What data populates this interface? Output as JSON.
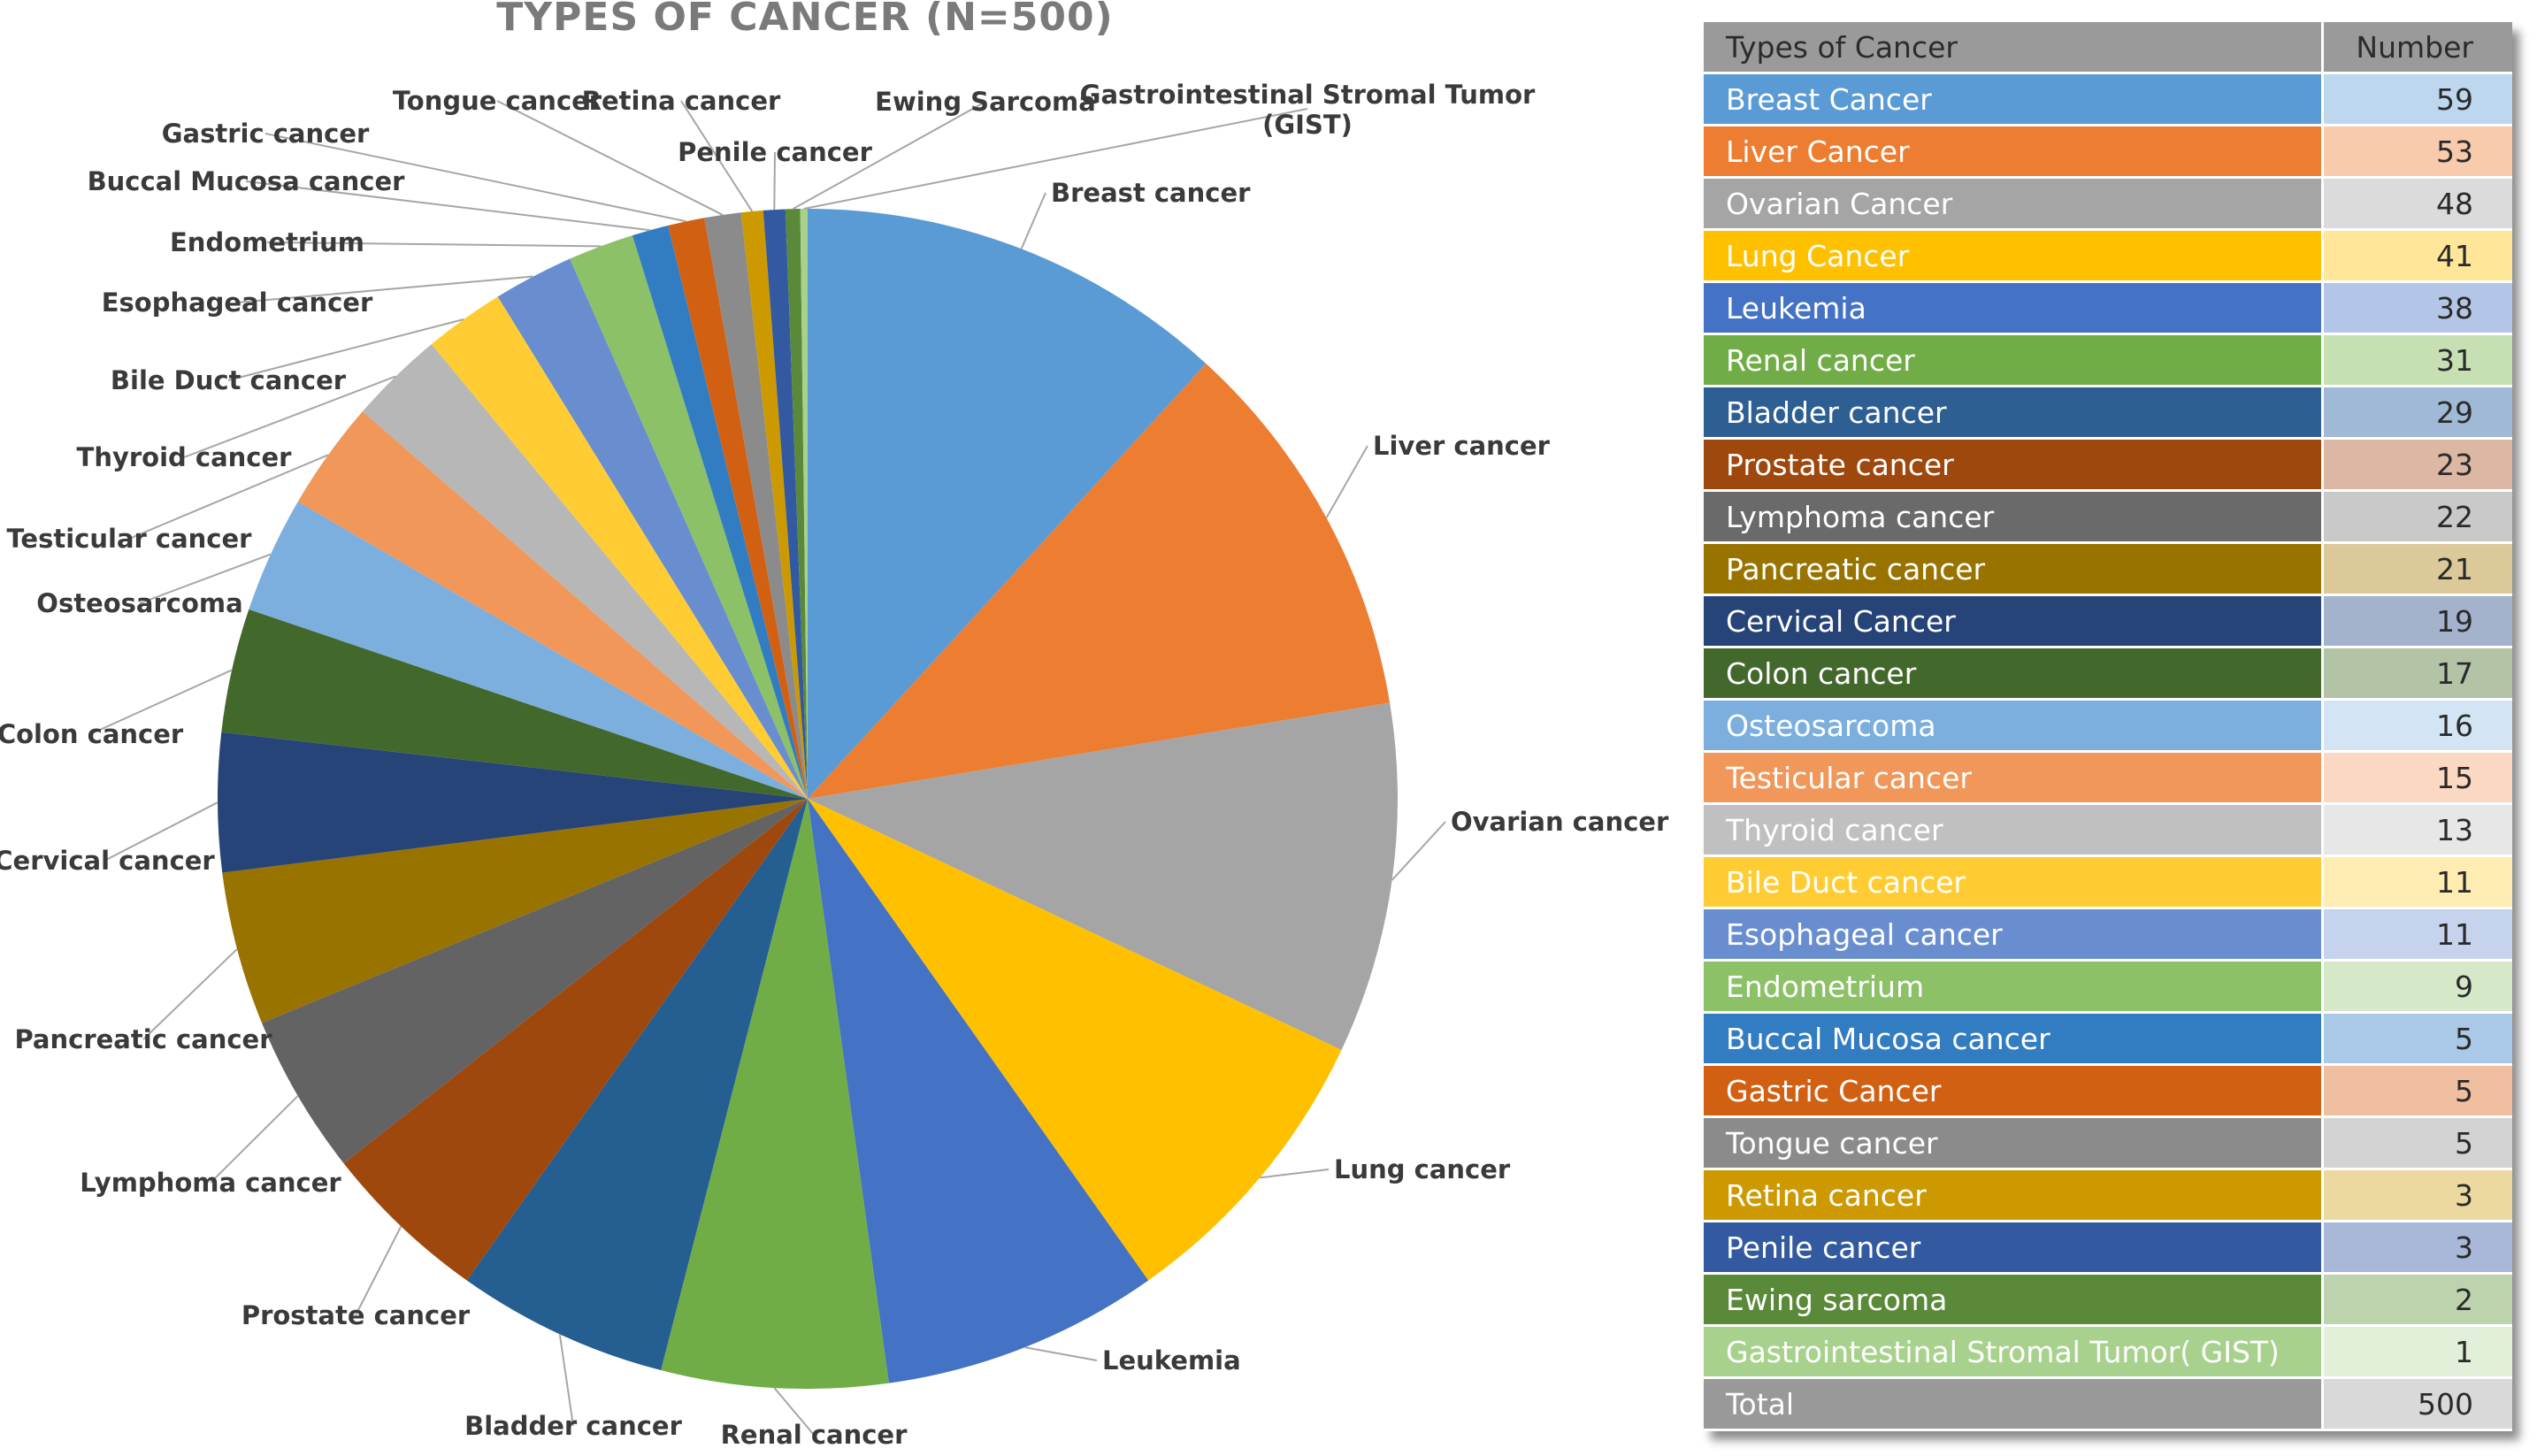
{
  "chart_data": {
    "type": "pie",
    "title": "TYPES OF CANCER (N=500)",
    "slices": [
      {
        "label": "Breast cancer",
        "value": 59,
        "color": "#5b9bd5"
      },
      {
        "label": "Liver cancer",
        "value": 53,
        "color": "#ed7d31"
      },
      {
        "label": "Ovarian cancer",
        "value": 48,
        "color": "#a5a5a5"
      },
      {
        "label": "Lung cancer",
        "value": 41,
        "color": "#ffc000"
      },
      {
        "label": "Leukemia",
        "value": 38,
        "color": "#4472c4"
      },
      {
        "label": "Renal cancer",
        "value": 31,
        "color": "#70ad47"
      },
      {
        "label": "Bladder cancer",
        "value": 29,
        "color": "#255e91"
      },
      {
        "label": "Prostate cancer",
        "value": 23,
        "color": "#9e480e"
      },
      {
        "label": "Lymphoma cancer",
        "value": 22,
        "color": "#636363"
      },
      {
        "label": "Pancreatic cancer",
        "value": 21,
        "color": "#997300"
      },
      {
        "label": "Cervical cancer",
        "value": 19,
        "color": "#264478"
      },
      {
        "label": "Colon cancer",
        "value": 17,
        "color": "#43682b"
      },
      {
        "label": "Osteosarcoma",
        "value": 16,
        "color": "#7cafdd"
      },
      {
        "label": "Testicular cancer",
        "value": 15,
        "color": "#f1975a"
      },
      {
        "label": "Thyroid cancer",
        "value": 13,
        "color": "#b7b7b7"
      },
      {
        "label": "Bile Duct cancer",
        "value": 11,
        "color": "#ffcd33"
      },
      {
        "label": "Esophageal cancer",
        "value": 11,
        "color": "#698ed0"
      },
      {
        "label": "Endometrium",
        "value": 9,
        "color": "#8cc168"
      },
      {
        "label": "Buccal Mucosa cancer",
        "value": 5,
        "color": "#327dc2"
      },
      {
        "label": "Gastric cancer",
        "value": 5,
        "color": "#d26012"
      },
      {
        "label": "Tongue cancer",
        "value": 5,
        "color": "#8b8b8b"
      },
      {
        "label": "Retina cancer",
        "value": 3,
        "color": "#cc9a00"
      },
      {
        "label": "Penile cancer",
        "value": 3,
        "color": "#335aa1"
      },
      {
        "label": "Ewing Sarcoma",
        "value": 2,
        "color": "#5a8a39"
      },
      {
        "label": "Gastrointestinal Stromal Tumor (GIST)",
        "value": 1,
        "color": "#a9d18e"
      }
    ]
  },
  "table": {
    "header": {
      "name": "Types of Cancer",
      "number": "Number"
    },
    "rows": [
      {
        "name": "Breast Cancer",
        "number": "59",
        "color": "#5b9bd5",
        "light": "#bdd7ee"
      },
      {
        "name": "Liver Cancer",
        "number": "53",
        "color": "#ed7d31",
        "light": "#f8cbad"
      },
      {
        "name": "Ovarian Cancer",
        "number": "48",
        "color": "#a5a5a5",
        "light": "#dbdbdb"
      },
      {
        "name": "Lung Cancer",
        "number": "41",
        "color": "#ffc000",
        "light": "#ffe699"
      },
      {
        "name": "Leukemia",
        "number": "38",
        "color": "#4472c4",
        "light": "#b4c6e7"
      },
      {
        "name": "Renal cancer",
        "number": "31",
        "color": "#70ad47",
        "light": "#c6e0b4"
      },
      {
        "name": "Bladder cancer",
        "number": "29",
        "color": "#2e5f93",
        "light": "#9fb9d6"
      },
      {
        "name": "Prostate cancer",
        "number": "23",
        "color": "#9e480e",
        "light": "#dcb7a3"
      },
      {
        "name": "Lymphoma cancer",
        "number": "22",
        "color": "#6a6a6a",
        "light": "#c9c9c9"
      },
      {
        "name": "Pancreatic cancer",
        "number": "21",
        "color": "#997300",
        "light": "#dcc99a"
      },
      {
        "name": "Cervical Cancer",
        "number": "19",
        "color": "#264478",
        "light": "#a4b2cc"
      },
      {
        "name": "Colon cancer",
        "number": "17",
        "color": "#43682b",
        "light": "#b2c3a6"
      },
      {
        "name": "Osteosarcoma",
        "number": "16",
        "color": "#7cafdd",
        "light": "#d3e5f4"
      },
      {
        "name": "Testicular cancer",
        "number": "15",
        "color": "#f1975a",
        "light": "#fad8c1"
      },
      {
        "name": "Thyroid cancer",
        "number": "13",
        "color": "#c0c0c0",
        "light": "#e7e7e7"
      },
      {
        "name": "Bile Duct cancer",
        "number": "11",
        "color": "#ffcd33",
        "light": "#ffecb3"
      },
      {
        "name": "Esophageal cancer",
        "number": "11",
        "color": "#698ed0",
        "light": "#c6d3ed"
      },
      {
        "name": "Endometrium",
        "number": "9",
        "color": "#8cc168",
        "light": "#d5e8c7"
      },
      {
        "name": "Buccal Mucosa cancer",
        "number": "5",
        "color": "#327dc2",
        "light": "#a9c9e7"
      },
      {
        "name": "Gastric Cancer",
        "number": "5",
        "color": "#d26012",
        "light": "#f0bfa0"
      },
      {
        "name": "Tongue cancer",
        "number": "5",
        "color": "#8b8b8b",
        "light": "#d3d3d3"
      },
      {
        "name": "Retina cancer",
        "number": "3",
        "color": "#cc9a00",
        "light": "#ecd9a0"
      },
      {
        "name": "Penile cancer",
        "number": "3",
        "color": "#335aa1",
        "light": "#a9b7d8"
      },
      {
        "name": "Ewing sarcoma",
        "number": "2",
        "color": "#5a8a39",
        "light": "#bdd3ae"
      },
      {
        "name": "Gastrointestinal Stromal Tumor( GIST)",
        "number": "1",
        "color": "#a9d18e",
        "light": "#e2efd9"
      }
    ],
    "total": {
      "name": "Total",
      "number": "500"
    }
  }
}
